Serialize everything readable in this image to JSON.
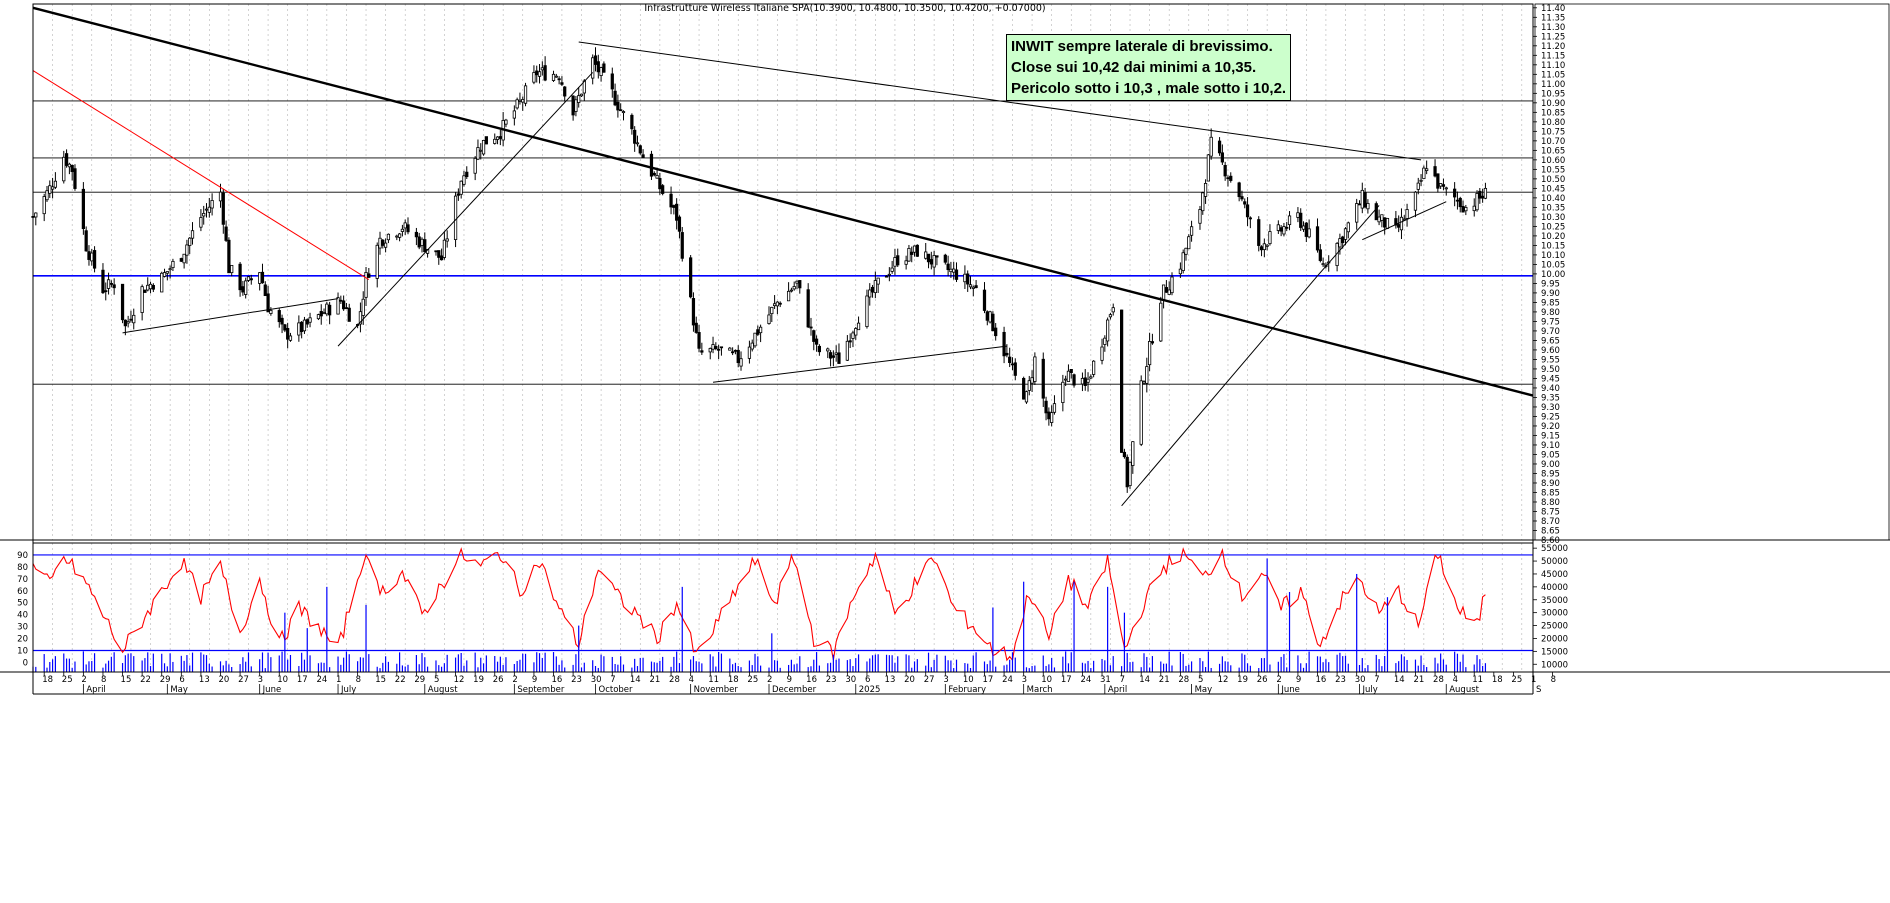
{
  "title": "Infrastrutture Wireless  Italiane SPA(10.3900, 10.4800, 10.3500, 10.4200, +0.07000)",
  "annotation": [
    "INWIT sempre laterale di brevissimo.",
    "Close sui 10,42 dai minimi a 10,35.",
    "Pericolo sotto i 10,3 , male sotto i 10,2."
  ],
  "colors": {
    "candles": "#000000",
    "horizontal_lines": "#000000",
    "support_line": "#0000ff",
    "downtrend_red": "#ff0000",
    "oscillator": "#ff0000",
    "volume": "#0000ff",
    "osc_levels": "#0000ff",
    "grid": "#b4b4b4"
  },
  "chart_data": [
    {
      "type": "candlestick",
      "x_axis": {
        "type": "date",
        "range": [
          "2024-03-14",
          "2025-09-01"
        ],
        "day_ticks": [
          "18",
          "25",
          "2",
          "8",
          "15",
          "22",
          "29",
          "6",
          "13",
          "20",
          "27",
          "3",
          "10",
          "17",
          "24",
          "1",
          "8",
          "15",
          "22",
          "29",
          "5",
          "12",
          "19",
          "26",
          "2",
          "9",
          "16",
          "23",
          "30",
          "7",
          "14",
          "21",
          "28",
          "4",
          "11",
          "18",
          "25",
          "2",
          "9",
          "16",
          "23",
          "30",
          "6",
          "13",
          "20",
          "27",
          "3",
          "10",
          "17",
          "24",
          "3",
          "10",
          "17",
          "24",
          "31",
          "7",
          "14",
          "21",
          "28",
          "5",
          "12",
          "19",
          "26",
          "2",
          "9",
          "16",
          "23",
          "30",
          "7",
          "14",
          "21",
          "28",
          "4",
          "11",
          "18",
          "25",
          "1",
          "8"
        ],
        "month_labels": [
          "April",
          "May",
          "June",
          "July",
          "August",
          "September",
          "October",
          "November",
          "December",
          "2025",
          "February",
          "March",
          "April",
          "May",
          "June",
          "July",
          "August",
          "S"
        ]
      },
      "y_axis": {
        "ticks": [
          "11.40",
          "11.35",
          "11.30",
          "11.25",
          "11.20",
          "11.15",
          "11.10",
          "11.05",
          "11.00",
          "10.95",
          "10.90",
          "10.85",
          "10.80",
          "10.75",
          "10.70",
          "10.65",
          "10.60",
          "10.55",
          "10.50",
          "10.45",
          "10.40",
          "10.35",
          "10.30",
          "10.25",
          "10.20",
          "10.15",
          "10.10",
          "10.05",
          "10.00",
          "9.95",
          "9.90",
          "9.85",
          "9.80",
          "9.75",
          "9.70",
          "9.65",
          "9.60",
          "9.55",
          "9.50",
          "9.45",
          "9.40",
          "9.35",
          "9.30",
          "9.25",
          "9.20",
          "9.15",
          "9.10",
          "9.05",
          "9.00",
          "8.95",
          "8.90",
          "8.85",
          "8.80",
          "8.75",
          "8.70",
          "8.65",
          "8.60"
        ],
        "range": [
          8.6,
          11.42
        ]
      },
      "grid": true,
      "horizontal_levels": [
        10.91,
        10.61,
        10.43,
        9.42
      ],
      "support_level": 9.99,
      "price_path": [
        [
          "2024-03-14",
          10.3
        ],
        [
          "2024-03-20",
          10.45
        ],
        [
          "2024-03-25",
          10.62
        ],
        [
          "2024-03-28",
          10.55
        ],
        [
          "2024-04-02",
          10.15
        ],
        [
          "2024-04-08",
          9.92
        ],
        [
          "2024-04-12",
          9.95
        ],
        [
          "2024-04-16",
          9.72
        ],
        [
          "2024-04-22",
          9.92
        ],
        [
          "2024-04-29",
          9.98
        ],
        [
          "2024-05-06",
          10.1
        ],
        [
          "2024-05-13",
          10.3
        ],
        [
          "2024-05-20",
          10.43
        ],
        [
          "2024-05-23",
          10.03
        ],
        [
          "2024-05-28",
          9.92
        ],
        [
          "2024-06-03",
          10.02
        ],
        [
          "2024-06-06",
          9.83
        ],
        [
          "2024-06-12",
          9.68
        ],
        [
          "2024-06-19",
          9.72
        ],
        [
          "2024-06-26",
          9.8
        ],
        [
          "2024-07-02",
          9.86
        ],
        [
          "2024-07-08",
          9.72
        ],
        [
          "2024-07-11",
          9.98
        ],
        [
          "2024-07-16",
          10.18
        ],
        [
          "2024-07-24",
          10.25
        ],
        [
          "2024-07-31",
          10.16
        ],
        [
          "2024-08-07",
          10.08
        ],
        [
          "2024-08-14",
          10.5
        ],
        [
          "2024-08-21",
          10.68
        ],
        [
          "2024-08-28",
          10.75
        ],
        [
          "2024-09-04",
          10.9
        ],
        [
          "2024-09-10",
          11.06
        ],
        [
          "2024-09-18",
          11.05
        ],
        [
          "2024-09-23",
          10.85
        ],
        [
          "2024-09-30",
          11.12
        ],
        [
          "2024-10-07",
          10.95
        ],
        [
          "2024-10-14",
          10.75
        ],
        [
          "2024-10-18",
          10.62
        ],
        [
          "2024-10-23",
          10.48
        ],
        [
          "2024-10-30",
          10.3
        ],
        [
          "2024-11-04",
          9.85
        ],
        [
          "2024-11-07",
          9.58
        ],
        [
          "2024-11-14",
          9.6
        ],
        [
          "2024-11-21",
          9.55
        ],
        [
          "2024-11-28",
          9.7
        ],
        [
          "2024-12-05",
          9.85
        ],
        [
          "2024-12-12",
          9.95
        ],
        [
          "2024-12-19",
          9.6
        ],
        [
          "2024-12-27",
          9.55
        ],
        [
          "2025-01-03",
          9.78
        ],
        [
          "2025-01-10",
          9.95
        ],
        [
          "2025-01-17",
          10.08
        ],
        [
          "2025-01-24",
          10.12
        ],
        [
          "2025-01-31",
          10.05
        ],
        [
          "2025-02-07",
          10.0
        ],
        [
          "2025-02-14",
          9.92
        ],
        [
          "2025-02-21",
          9.7
        ],
        [
          "2025-02-28",
          9.45
        ],
        [
          "2025-03-04",
          9.35
        ],
        [
          "2025-03-07",
          9.55
        ],
        [
          "2025-03-12",
          9.2
        ],
        [
          "2025-03-18",
          9.48
        ],
        [
          "2025-03-25",
          9.4
        ],
        [
          "2025-03-31",
          9.65
        ],
        [
          "2025-04-04",
          9.85
        ],
        [
          "2025-04-07",
          9.1
        ],
        [
          "2025-04-09",
          8.9
        ],
        [
          "2025-04-14",
          9.4
        ],
        [
          "2025-04-21",
          9.88
        ],
        [
          "2025-04-28",
          10.05
        ],
        [
          "2025-05-05",
          10.35
        ],
        [
          "2025-05-09",
          10.68
        ],
        [
          "2025-05-14",
          10.55
        ],
        [
          "2025-05-19",
          10.42
        ],
        [
          "2025-05-26",
          10.15
        ],
        [
          "2025-06-02",
          10.22
        ],
        [
          "2025-06-09",
          10.3
        ],
        [
          "2025-06-13",
          10.2
        ],
        [
          "2025-06-18",
          10.05
        ],
        [
          "2025-06-25",
          10.2
        ],
        [
          "2025-07-02",
          10.4
        ],
        [
          "2025-07-07",
          10.3
        ],
        [
          "2025-07-14",
          10.22
        ],
        [
          "2025-07-21",
          10.4
        ],
        [
          "2025-07-25",
          10.58
        ],
        [
          "2025-07-30",
          10.45
        ],
        [
          "2025-08-04",
          10.4
        ],
        [
          "2025-08-08",
          10.35
        ],
        [
          "2025-08-15",
          10.42
        ]
      ],
      "trendlines": [
        {
          "style": "thick",
          "from": [
            "2024-03-14",
            11.4
          ],
          "to": [
            "2025-09-01",
            9.36
          ]
        },
        {
          "style": "red",
          "from": [
            "2024-03-14",
            11.07
          ],
          "to": [
            "2024-07-12",
            9.97
          ]
        },
        {
          "style": "thin",
          "from": [
            "2024-04-15",
            9.69
          ],
          "to": [
            "2024-07-01",
            9.87
          ]
        },
        {
          "style": "thin",
          "from": [
            "2024-07-01",
            9.62
          ],
          "to": [
            "2024-09-30",
            11.06
          ]
        },
        {
          "style": "thin",
          "from": [
            "2024-09-25",
            11.22
          ],
          "to": [
            "2025-07-23",
            10.6
          ]
        },
        {
          "style": "thin",
          "from": [
            "2024-11-12",
            9.43
          ],
          "to": [
            "2025-02-25",
            9.62
          ]
        },
        {
          "style": "thin",
          "from": [
            "2025-04-07",
            8.78
          ],
          "to": [
            "2025-06-16",
            9.99
          ]
        },
        {
          "style": "thin",
          "from": [
            "2025-06-16",
            9.99
          ],
          "to": [
            "2025-07-08",
            10.36
          ]
        },
        {
          "style": "thin",
          "from": [
            "2025-07-02",
            10.18
          ],
          "to": [
            "2025-08-01",
            10.38
          ]
        }
      ]
    },
    {
      "type": "line",
      "name_hint": "oscillator",
      "y_axis": {
        "ticks": [
          "90",
          "80",
          "70",
          "60",
          "50",
          "40",
          "30",
          "20",
          "10",
          "0"
        ],
        "range": [
          -8,
          100
        ]
      },
      "levels": [
        90,
        10
      ],
      "x_axis": {
        "type": "date",
        "range": [
          "2024-03-14",
          "2025-09-01"
        ]
      },
      "values_path": [
        [
          "2024-03-14",
          80
        ],
        [
          "2024-03-20",
          65
        ],
        [
          "2024-03-25",
          88
        ],
        [
          "2024-04-01",
          70
        ],
        [
          "2024-04-08",
          40
        ],
        [
          "2024-04-15",
          10
        ],
        [
          "2024-04-22",
          35
        ],
        [
          "2024-04-29",
          60
        ],
        [
          "2024-05-06",
          85
        ],
        [
          "2024-05-13",
          55
        ],
        [
          "2024-05-20",
          80
        ],
        [
          "2024-05-27",
          25
        ],
        [
          "2024-06-03",
          70
        ],
        [
          "2024-06-10",
          15
        ],
        [
          "2024-06-17",
          45
        ],
        [
          "2024-06-24",
          30
        ],
        [
          "2024-07-01",
          10
        ],
        [
          "2024-07-10",
          88
        ],
        [
          "2024-07-17",
          60
        ],
        [
          "2024-07-24",
          75
        ],
        [
          "2024-07-31",
          40
        ],
        [
          "2024-08-07",
          65
        ],
        [
          "2024-08-14",
          90
        ],
        [
          "2024-08-21",
          80
        ],
        [
          "2024-08-28",
          92
        ],
        [
          "2024-09-04",
          60
        ],
        [
          "2024-09-11",
          85
        ],
        [
          "2024-09-18",
          45
        ],
        [
          "2024-09-25",
          15
        ],
        [
          "2024-10-02",
          80
        ],
        [
          "2024-10-09",
          55
        ],
        [
          "2024-10-16",
          40
        ],
        [
          "2024-10-23",
          20
        ],
        [
          "2024-10-30",
          50
        ],
        [
          "2024-11-06",
          5
        ],
        [
          "2024-11-13",
          30
        ],
        [
          "2024-11-20",
          60
        ],
        [
          "2024-11-27",
          85
        ],
        [
          "2024-12-04",
          50
        ],
        [
          "2024-12-11",
          88
        ],
        [
          "2024-12-18",
          20
        ],
        [
          "2024-12-25",
          8
        ],
        [
          "2025-01-02",
          60
        ],
        [
          "2025-01-09",
          90
        ],
        [
          "2025-01-16",
          40
        ],
        [
          "2025-01-23",
          65
        ],
        [
          "2025-01-30",
          88
        ],
        [
          "2025-02-06",
          45
        ],
        [
          "2025-02-13",
          30
        ],
        [
          "2025-02-20",
          10
        ],
        [
          "2025-02-27",
          5
        ],
        [
          "2025-03-05",
          60
        ],
        [
          "2025-03-12",
          20
        ],
        [
          "2025-03-19",
          70
        ],
        [
          "2025-03-26",
          45
        ],
        [
          "2025-04-02",
          85
        ],
        [
          "2025-04-08",
          10
        ],
        [
          "2025-04-15",
          50
        ],
        [
          "2025-04-22",
          80
        ],
        [
          "2025-04-29",
          92
        ],
        [
          "2025-05-06",
          70
        ],
        [
          "2025-05-13",
          93
        ],
        [
          "2025-05-20",
          55
        ],
        [
          "2025-05-27",
          75
        ],
        [
          "2025-06-03",
          45
        ],
        [
          "2025-06-10",
          60
        ],
        [
          "2025-06-17",
          15
        ],
        [
          "2025-06-24",
          50
        ],
        [
          "2025-07-01",
          70
        ],
        [
          "2025-07-08",
          40
        ],
        [
          "2025-07-15",
          60
        ],
        [
          "2025-07-22",
          30
        ],
        [
          "2025-07-29",
          92
        ],
        [
          "2025-08-05",
          45
        ],
        [
          "2025-08-12",
          30
        ],
        [
          "2025-08-15",
          60
        ]
      ]
    },
    {
      "type": "bar",
      "name_hint": "volume",
      "y_axis": {
        "ticks": [
          "55000",
          "50000",
          "45000",
          "40000",
          "35000",
          "30000",
          "25000",
          "20000",
          "15000",
          "10000"
        ],
        "range": [
          7000,
          57000
        ]
      },
      "x_axis": {
        "type": "date",
        "range": [
          "2024-03-14",
          "2025-09-01"
        ]
      },
      "spikes": [
        [
          "2024-06-12",
          30000
        ],
        [
          "2024-06-20",
          24000
        ],
        [
          "2024-06-27",
          40000
        ],
        [
          "2024-07-11",
          33000
        ],
        [
          "2024-09-25",
          25000
        ],
        [
          "2024-11-01",
          40000
        ],
        [
          "2024-12-03",
          22000
        ],
        [
          "2025-02-20",
          32000
        ],
        [
          "2025-03-03",
          42000
        ],
        [
          "2025-03-21",
          42000
        ],
        [
          "2025-04-02",
          40000
        ],
        [
          "2025-04-08",
          30000
        ],
        [
          "2025-05-29",
          51000
        ],
        [
          "2025-06-06",
          38000
        ],
        [
          "2025-06-30",
          45000
        ],
        [
          "2025-07-11",
          36000
        ]
      ]
    }
  ]
}
